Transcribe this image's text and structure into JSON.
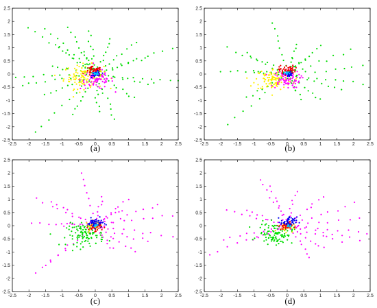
{
  "chart_data": [
    {
      "type": "scatter",
      "panel_label": "(a)",
      "xlim": [
        -2.5,
        2.5
      ],
      "ylim": [
        -2.5,
        2.5
      ],
      "xticks": [
        "-2.5",
        "-2",
        "-1.5",
        "-1",
        "-0.5",
        "0",
        "0.5",
        "1",
        "1.5",
        "2",
        "2.5"
      ],
      "yticks": [
        "2.5",
        "2",
        "1.5",
        "1",
        "0.5",
        "0",
        "-0.5",
        "-1",
        "-1.5",
        "-2",
        "-2.5"
      ],
      "grid": false,
      "series": [
        {
          "color": "#00dd00",
          "ray_ends": [
            [
              -2.0,
              1.8
            ],
            [
              -1.5,
              1.7
            ],
            [
              -1.2,
              1.1
            ],
            [
              -0.8,
              1.8
            ],
            [
              -0.2,
              1.6
            ],
            [
              0.5,
              1.3
            ],
            [
              1.2,
              1.2
            ],
            [
              2.3,
              1.0
            ],
            [
              1.5,
              0.6
            ],
            [
              2.5,
              -0.3
            ],
            [
              1.8,
              -0.4
            ],
            [
              1.2,
              -0.9
            ],
            [
              0.6,
              -1.7
            ],
            [
              0.1,
              -1.4
            ],
            [
              -0.7,
              -1.5
            ],
            [
              -1.8,
              -2.2
            ],
            [
              -1.5,
              -0.8
            ],
            [
              -2.2,
              -0.4
            ],
            [
              -2.4,
              -0.1
            ],
            [
              -1.3,
              0.3
            ],
            [
              -0.4,
              0.8
            ]
          ],
          "points_per_ray": 9
        },
        {
          "color": "#ffee00",
          "center": [
            -0.35,
            -0.1
          ],
          "spread": 0.3,
          "count": 110
        },
        {
          "color": "#ff00ff",
          "center": [
            0.05,
            -0.2
          ],
          "spread": 0.25,
          "count": 80
        },
        {
          "color": "#ee0000",
          "center": [
            -0.05,
            0.1
          ],
          "spread": 0.12,
          "count": 55
        },
        {
          "color": "#0000ee",
          "center": [
            0.05,
            0.0
          ],
          "spread": 0.07,
          "count": 30
        },
        {
          "color": "#00ccff",
          "center": [
            0.02,
            0.02
          ],
          "spread": 0.04,
          "count": 10
        }
      ]
    },
    {
      "type": "scatter",
      "panel_label": "(b)",
      "xlim": [
        -2.5,
        2.5
      ],
      "ylim": [
        -2.5,
        2.5
      ],
      "xticks": [
        "-2.5",
        "-2",
        "-1.5",
        "-1",
        "-0.5",
        "0",
        "0.5",
        "1",
        "1.5",
        "2",
        "2.5"
      ],
      "yticks": [
        "2.5",
        "2",
        "1.5",
        "1",
        "0.5",
        "0",
        "-0.5",
        "-1",
        "-1.5",
        "-2",
        "-2.5"
      ],
      "grid": false,
      "series": [
        {
          "color": "#00dd00",
          "ray_ends": [
            [
              -1.8,
              1.0
            ],
            [
              -1.2,
              0.8
            ],
            [
              -0.4,
              2.0
            ],
            [
              0.3,
              1.1
            ],
            [
              1.0,
              1.1
            ],
            [
              1.9,
              0.9
            ],
            [
              2.3,
              0.3
            ],
            [
              2.3,
              -0.4
            ],
            [
              1.6,
              -0.6
            ],
            [
              1.0,
              -1.0
            ],
            [
              0.4,
              -0.9
            ],
            [
              -1.8,
              -1.9
            ],
            [
              -1.2,
              -0.9
            ],
            [
              -2.0,
              0.1
            ],
            [
              -1.0,
              0.1
            ],
            [
              0.5,
              0.5
            ]
          ],
          "points_per_ray": 8
        },
        {
          "color": "#ffee00",
          "center": [
            -0.4,
            -0.2
          ],
          "spread": 0.28,
          "count": 110
        },
        {
          "color": "#ff00ff",
          "center": [
            -0.05,
            -0.2
          ],
          "spread": 0.22,
          "count": 75
        },
        {
          "color": "#ee0000",
          "center": [
            0.0,
            0.15
          ],
          "spread": 0.12,
          "count": 55
        },
        {
          "color": "#0000ee",
          "center": [
            0.05,
            0.0
          ],
          "spread": 0.07,
          "count": 30
        },
        {
          "color": "#00ccff",
          "center": [
            0.0,
            0.02
          ],
          "spread": 0.04,
          "count": 10
        }
      ]
    },
    {
      "type": "scatter",
      "panel_label": "(c)",
      "xlim": [
        -2.5,
        2.5
      ],
      "ylim": [
        -2.5,
        2.5
      ],
      "xticks": [
        "-2.5",
        "-2",
        "-1.5",
        "-1",
        "-0.5",
        "0",
        "0.5",
        "1",
        "1.5",
        "2",
        "2.5"
      ],
      "yticks": [
        "2.5",
        "2",
        "1.5",
        "1",
        "0.5",
        "0",
        "-0.5",
        "-1",
        "-1.5",
        "-2",
        "-2.5"
      ],
      "grid": false,
      "series": [
        {
          "color": "#ff00ff",
          "ray_ends": [
            [
              -1.8,
              1.0
            ],
            [
              -1.3,
              0.9
            ],
            [
              -0.4,
              2.0
            ],
            [
              0.2,
              1.1
            ],
            [
              1.0,
              1.0
            ],
            [
              1.9,
              0.8
            ],
            [
              2.3,
              0.4
            ],
            [
              2.3,
              -0.4
            ],
            [
              1.6,
              -0.6
            ],
            [
              1.2,
              -1.0
            ],
            [
              0.5,
              -0.9
            ],
            [
              -1.8,
              -1.8
            ],
            [
              -1.5,
              -1.5
            ],
            [
              -1.9,
              0.1
            ],
            [
              -1.0,
              0.1
            ],
            [
              0.8,
              0.6
            ]
          ],
          "points_per_ray": 8
        },
        {
          "color": "#00dd00",
          "center": [
            -0.3,
            -0.35
          ],
          "spread": 0.28,
          "count": 100
        },
        {
          "color": "#ffee00",
          "center": [
            -0.05,
            0.0
          ],
          "spread": 0.12,
          "count": 35
        },
        {
          "color": "#ee0000",
          "center": [
            0.0,
            -0.05
          ],
          "spread": 0.1,
          "count": 40
        },
        {
          "color": "#0000ee",
          "center": [
            0.0,
            0.1
          ],
          "spread": 0.12,
          "count": 45
        },
        {
          "color": "#00ccff",
          "center": [
            0.02,
            0.0
          ],
          "spread": 0.04,
          "count": 8
        }
      ]
    },
    {
      "type": "scatter",
      "panel_label": "(d)",
      "xlim": [
        -2.5,
        2.5
      ],
      "ylim": [
        -2.5,
        2.5
      ],
      "xticks": [
        "-2.5",
        "-2",
        "-1.5",
        "-1",
        "-0.5",
        "0",
        "0.5",
        "1",
        "1.5",
        "2",
        "2.5"
      ],
      "yticks": [
        "2.5",
        "2",
        "1.5",
        "1",
        "0.5",
        "0",
        "-0.5",
        "-1",
        "-1.5",
        "-2",
        "-2.5"
      ],
      "grid": false,
      "series": [
        {
          "color": "#ff00ff",
          "ray_ends": [
            [
              -1.8,
              0.6
            ],
            [
              -1.2,
              0.6
            ],
            [
              -0.8,
              1.7
            ],
            [
              -0.5,
              1.5
            ],
            [
              0.3,
              1.3
            ],
            [
              1.1,
              1.1
            ],
            [
              2.0,
              0.8
            ],
            [
              2.5,
              0.3
            ],
            [
              2.4,
              -0.3
            ],
            [
              2.2,
              -0.5
            ],
            [
              1.6,
              -0.6
            ],
            [
              1.1,
              -0.9
            ],
            [
              0.7,
              -1.2
            ],
            [
              -2.4,
              -1.1
            ],
            [
              -1.9,
              -0.5
            ],
            [
              -1.0,
              -0.5
            ]
          ],
          "points_per_ray": 8
        },
        {
          "color": "#00dd00",
          "center": [
            -0.35,
            -0.3
          ],
          "spread": 0.26,
          "count": 100
        },
        {
          "color": "#ffee00",
          "center": [
            -0.05,
            -0.05
          ],
          "spread": 0.12,
          "count": 30
        },
        {
          "color": "#ee0000",
          "center": [
            -0.05,
            0.0
          ],
          "spread": 0.1,
          "count": 40
        },
        {
          "color": "#0000ee",
          "center": [
            0.05,
            0.15
          ],
          "spread": 0.12,
          "count": 45
        },
        {
          "color": "#00ccff",
          "center": [
            0.02,
            0.0
          ],
          "spread": 0.04,
          "count": 8
        }
      ]
    }
  ]
}
